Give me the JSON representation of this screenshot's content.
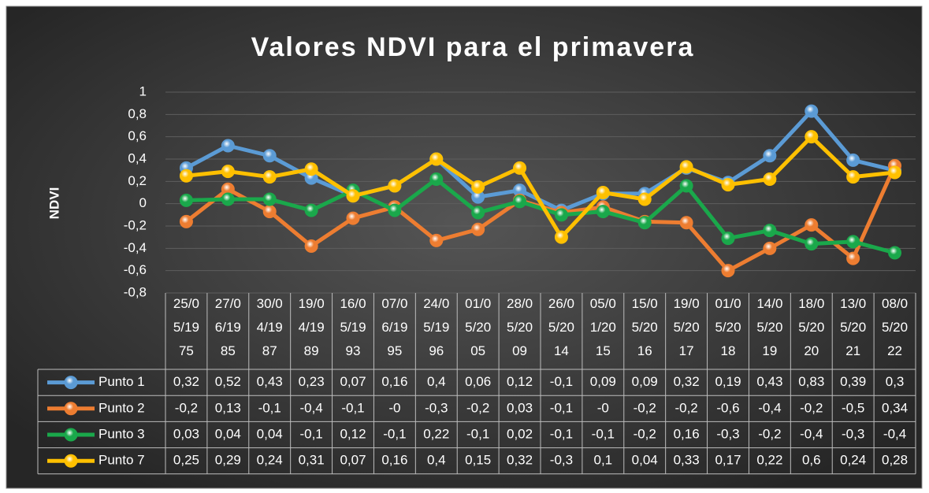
{
  "chart_data": {
    "type": "line",
    "title": "Valores NDVI para el primavera",
    "y_label": "NDVI",
    "categories": [
      "25/05/1975",
      "27/06/1985",
      "30/04/1987",
      "19/04/1989",
      "16/05/1993",
      "07/06/1995",
      "24/05/1996",
      "01/05/2005",
      "28/05/2009",
      "26/05/2014",
      "05/01/2015",
      "15/05/2016",
      "19/05/2017",
      "01/05/2018",
      "14/05/2019",
      "18/05/2020",
      "13/05/2021",
      "08/05/2022"
    ],
    "series": [
      {
        "name": "Punto 1",
        "color": "#5b9bd5",
        "values": [
          0.32,
          0.52,
          0.43,
          0.23,
          0.07,
          0.16,
          0.4,
          0.06,
          0.12,
          -0.06,
          0.09,
          0.09,
          0.32,
          0.19,
          0.43,
          0.83,
          0.39,
          0.3
        ],
        "value_labels": [
          "0,32",
          "0,52",
          "0,43",
          "0,23",
          "0,07",
          "0,16",
          "0,4",
          "0,06",
          "0,12",
          "-0,1",
          "0,09",
          "0,09",
          "0,32",
          "0,19",
          "0,43",
          "0,83",
          "0,39",
          "0,3"
        ]
      },
      {
        "name": "Punto 2",
        "color": "#ed7d31",
        "values": [
          -0.16,
          0.13,
          -0.07,
          -0.38,
          -0.13,
          -0.03,
          -0.33,
          -0.23,
          0.03,
          -0.08,
          -0.03,
          -0.16,
          -0.17,
          -0.6,
          -0.4,
          -0.19,
          -0.49,
          0.34
        ],
        "value_labels": [
          "-0,2",
          "0,13",
          "-0,1",
          "-0,4",
          "-0,1",
          "-0",
          "-0,3",
          "-0,2",
          "0,03",
          "-0,1",
          "-0",
          "-0,2",
          "-0,2",
          "-0,6",
          "-0,4",
          "-0,2",
          "-0,5",
          "0,34"
        ]
      },
      {
        "name": "Punto 3",
        "color": "#1aa84b",
        "values": [
          0.03,
          0.04,
          0.04,
          -0.06,
          0.12,
          -0.06,
          0.22,
          -0.08,
          0.02,
          -0.1,
          -0.07,
          -0.17,
          0.16,
          -0.31,
          -0.24,
          -0.36,
          -0.34,
          -0.44
        ],
        "value_labels": [
          "0,03",
          "0,04",
          "0,04",
          "-0,1",
          "0,12",
          "-0,1",
          "0,22",
          "-0,1",
          "0,02",
          "-0,1",
          "-0,1",
          "-0,2",
          "0,16",
          "-0,3",
          "-0,2",
          "-0,4",
          "-0,3",
          "-0,4"
        ]
      },
      {
        "name": "Punto 7",
        "color": "#ffc000",
        "values": [
          0.25,
          0.29,
          0.24,
          0.31,
          0.07,
          0.16,
          0.4,
          0.15,
          0.32,
          -0.3,
          0.1,
          0.04,
          0.33,
          0.17,
          0.22,
          0.6,
          0.24,
          0.28
        ],
        "value_labels": [
          "0,25",
          "0,29",
          "0,24",
          "0,31",
          "0,07",
          "0,16",
          "0,4",
          "0,15",
          "0,32",
          "-0,3",
          "0,1",
          "0,04",
          "0,33",
          "0,17",
          "0,22",
          "0,6",
          "0,24",
          "0,28"
        ]
      }
    ],
    "ylim": [
      -0.8,
      1
    ],
    "yticks": [
      {
        "value": -0.8,
        "label": "-0,8"
      },
      {
        "value": -0.6,
        "label": "-0,6"
      },
      {
        "value": -0.4,
        "label": "-0,4"
      },
      {
        "value": -0.2,
        "label": "-0,2"
      },
      0,
      {
        "value": 0.2,
        "label": "0,2"
      },
      {
        "value": 0.4,
        "label": "0,4"
      },
      {
        "value": 0.6,
        "label": "0,6"
      },
      {
        "value": 0.8,
        "label": "0,8"
      },
      1
    ],
    "grid": true
  }
}
